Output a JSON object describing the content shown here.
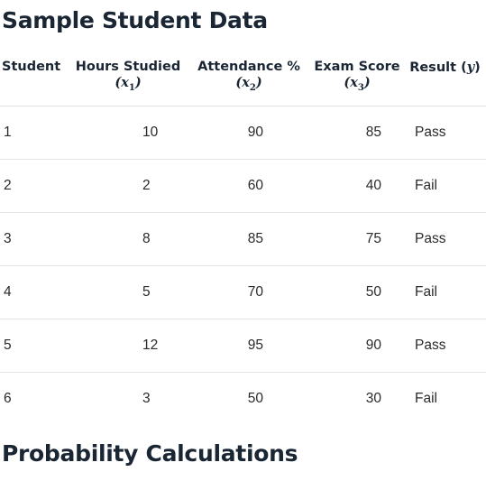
{
  "sections": {
    "sample_title": "Sample Student Data",
    "probability_title": "Probability Calculations"
  },
  "table": {
    "headers": {
      "student": "Student",
      "hours": "Hours Studied",
      "hours_var": "x",
      "hours_sub": "1",
      "attendance": "Attendance %",
      "attendance_var": "x",
      "attendance_sub": "2",
      "exam": "Exam Score",
      "exam_var": "x",
      "exam_sub": "3",
      "result": "Result",
      "result_var": "y"
    },
    "rows": [
      {
        "student": "1",
        "hours": "10",
        "attendance": "90",
        "exam": "85",
        "result": "Pass"
      },
      {
        "student": "2",
        "hours": "2",
        "attendance": "60",
        "exam": "40",
        "result": "Fail"
      },
      {
        "student": "3",
        "hours": "8",
        "attendance": "85",
        "exam": "75",
        "result": "Pass"
      },
      {
        "student": "4",
        "hours": "5",
        "attendance": "70",
        "exam": "50",
        "result": "Fail"
      },
      {
        "student": "5",
        "hours": "12",
        "attendance": "95",
        "exam": "90",
        "result": "Pass"
      },
      {
        "student": "6",
        "hours": "3",
        "attendance": "50",
        "exam": "30",
        "result": "Fail"
      }
    ]
  }
}
